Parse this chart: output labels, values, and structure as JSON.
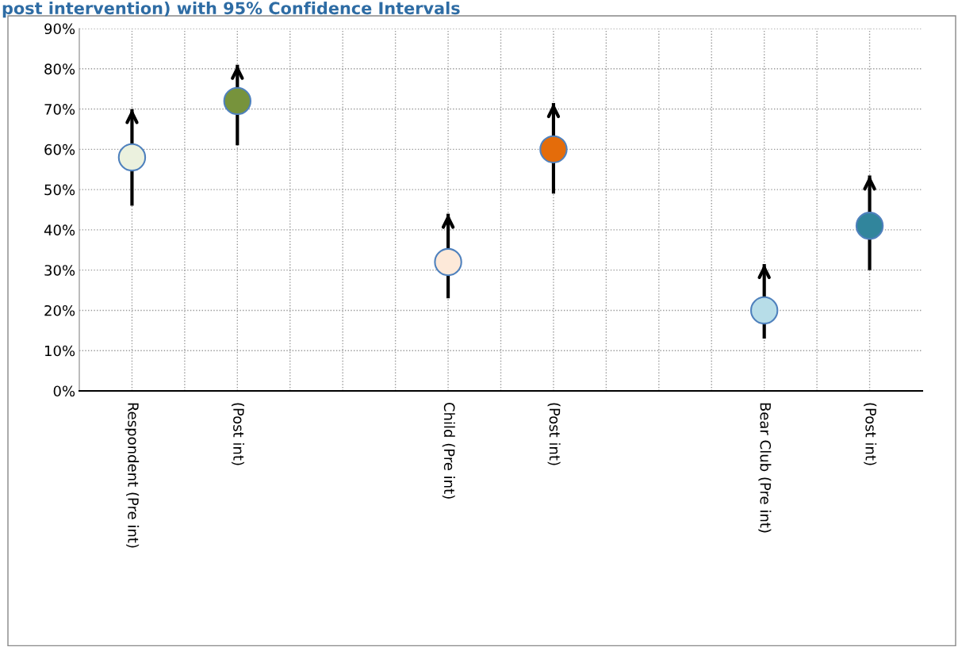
{
  "chart_data": {
    "type": "scatter",
    "title": "post intervention) with 95% Confidence Intervals",
    "categories": [
      "Respondent (Pre int)",
      "(Post int)",
      null,
      "Child (Pre int)",
      "(Post int)",
      null,
      "Bear Club (Pre int)",
      "(Post int)"
    ],
    "values": [
      58,
      72,
      null,
      32,
      60,
      null,
      20,
      41
    ],
    "errors": [
      [
        46,
        70
      ],
      [
        61,
        81
      ],
      null,
      [
        23,
        44
      ],
      [
        49,
        71.5
      ],
      null,
      [
        13,
        31.5
      ],
      [
        30,
        53.5
      ]
    ],
    "colors": [
      "#ebf1de",
      "#77933c",
      "#ffffff",
      "#fde9d9",
      "#e46c0a",
      "#ffffff",
      "#b7dde8",
      "#31859c"
    ],
    "ylim": [
      0,
      90
    ],
    "yticks": [
      {
        "value": 0,
        "label": "0%"
      },
      {
        "value": 10,
        "label": "10%"
      },
      {
        "value": 20,
        "label": "20%"
      },
      {
        "value": 30,
        "label": "30%"
      },
      {
        "value": 40,
        "label": "40%"
      },
      {
        "value": 50,
        "label": "50%"
      },
      {
        "value": 60,
        "label": "60%"
      },
      {
        "value": 70,
        "label": "70%"
      },
      {
        "value": 80,
        "label": "80%"
      },
      {
        "value": 90,
        "label": "90%"
      }
    ],
    "grid": true,
    "marker": "circle"
  }
}
